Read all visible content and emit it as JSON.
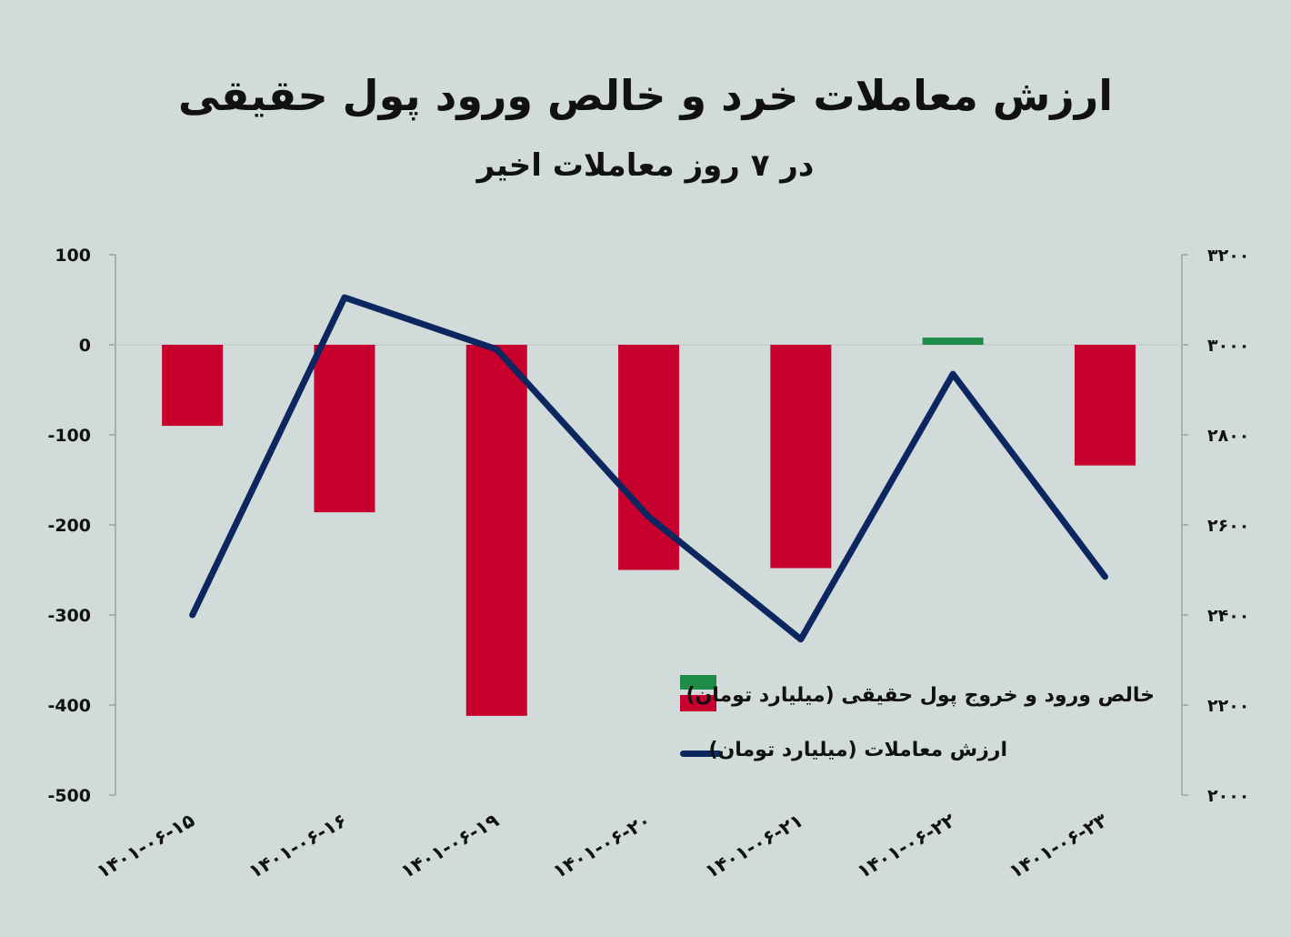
{
  "title": "ارزش معاملات خرد و خالص ورود پول حقیقی",
  "subtitle": "در ۷ روز معاملات اخیر",
  "chart_data": {
    "type": "bar+line",
    "categories": [
      "۱۴۰۱-۰۶-۱۵",
      "۱۴۰۱-۰۶-۱۶",
      "۱۴۰۱-۰۶-۱۹",
      "۱۴۰۱-۰۶-۲۰",
      "۱۴۰۱-۰۶-۲۱",
      "۱۴۰۱-۰۶-۲۲",
      "۱۴۰۱-۰۶-۲۳"
    ],
    "series": [
      {
        "name": "خالص ورود و خروج پول حقیقی (میلیارد تومان)",
        "type": "bar",
        "axis": "left",
        "values": [
          -90,
          -186,
          -412,
          -250,
          -248,
          8,
          -134
        ],
        "positive_color": "#1e8b48",
        "negative_color": "#c8002d"
      },
      {
        "name": "ارزش معاملات (میلیارد تومان)",
        "type": "line",
        "axis": "right",
        "values": [
          2400,
          3105,
          2990,
          2618,
          2346,
          2935,
          2485
        ],
        "color": "#0c2660"
      }
    ],
    "left_axis": {
      "ylim": [
        -500,
        100
      ],
      "ticks": [
        100,
        0,
        -100,
        -200,
        -300,
        -400,
        -500
      ],
      "tick_labels": [
        "100",
        "0",
        "-100",
        "-200",
        "-300",
        "-400",
        "-500"
      ]
    },
    "right_axis": {
      "ylim": [
        2000,
        3200
      ],
      "ticks": [
        3200,
        3000,
        2800,
        2600,
        2400,
        2200,
        2000
      ],
      "tick_labels": [
        "۳۲۰۰",
        "۳۰۰۰",
        "۲۸۰۰",
        "۲۶۰۰",
        "۲۴۰۰",
        "۲۲۰۰",
        "۲۰۰۰"
      ]
    },
    "grid": false,
    "legend_position": "bottom-right"
  }
}
